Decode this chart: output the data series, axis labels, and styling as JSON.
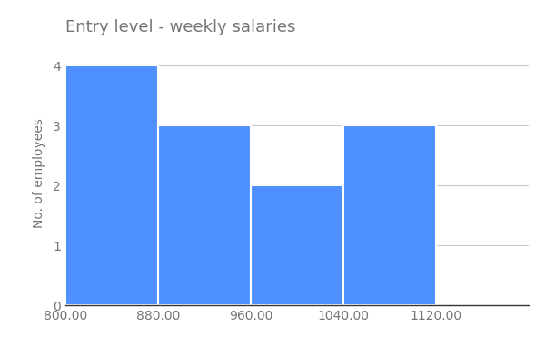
{
  "title": "Entry level - weekly salaries",
  "ylabel": "No. of employees",
  "bin_edges": [
    800,
    880,
    960,
    1040,
    1120,
    1200
  ],
  "counts": [
    4,
    3,
    2,
    3,
    0
  ],
  "bar_color": "#4d90fe",
  "background_color": "#ffffff",
  "grid_color": "#cccccc",
  "title_fontsize": 13,
  "label_fontsize": 10,
  "tick_fontsize": 10,
  "ylim": [
    0,
    4.4
  ],
  "yticks": [
    0,
    1,
    2,
    3,
    4
  ],
  "xticks": [
    800,
    880,
    960,
    1040,
    1120
  ],
  "title_color": "#757575",
  "tick_color": "#757575",
  "ylabel_color": "#757575",
  "xlim": [
    800,
    1200
  ]
}
